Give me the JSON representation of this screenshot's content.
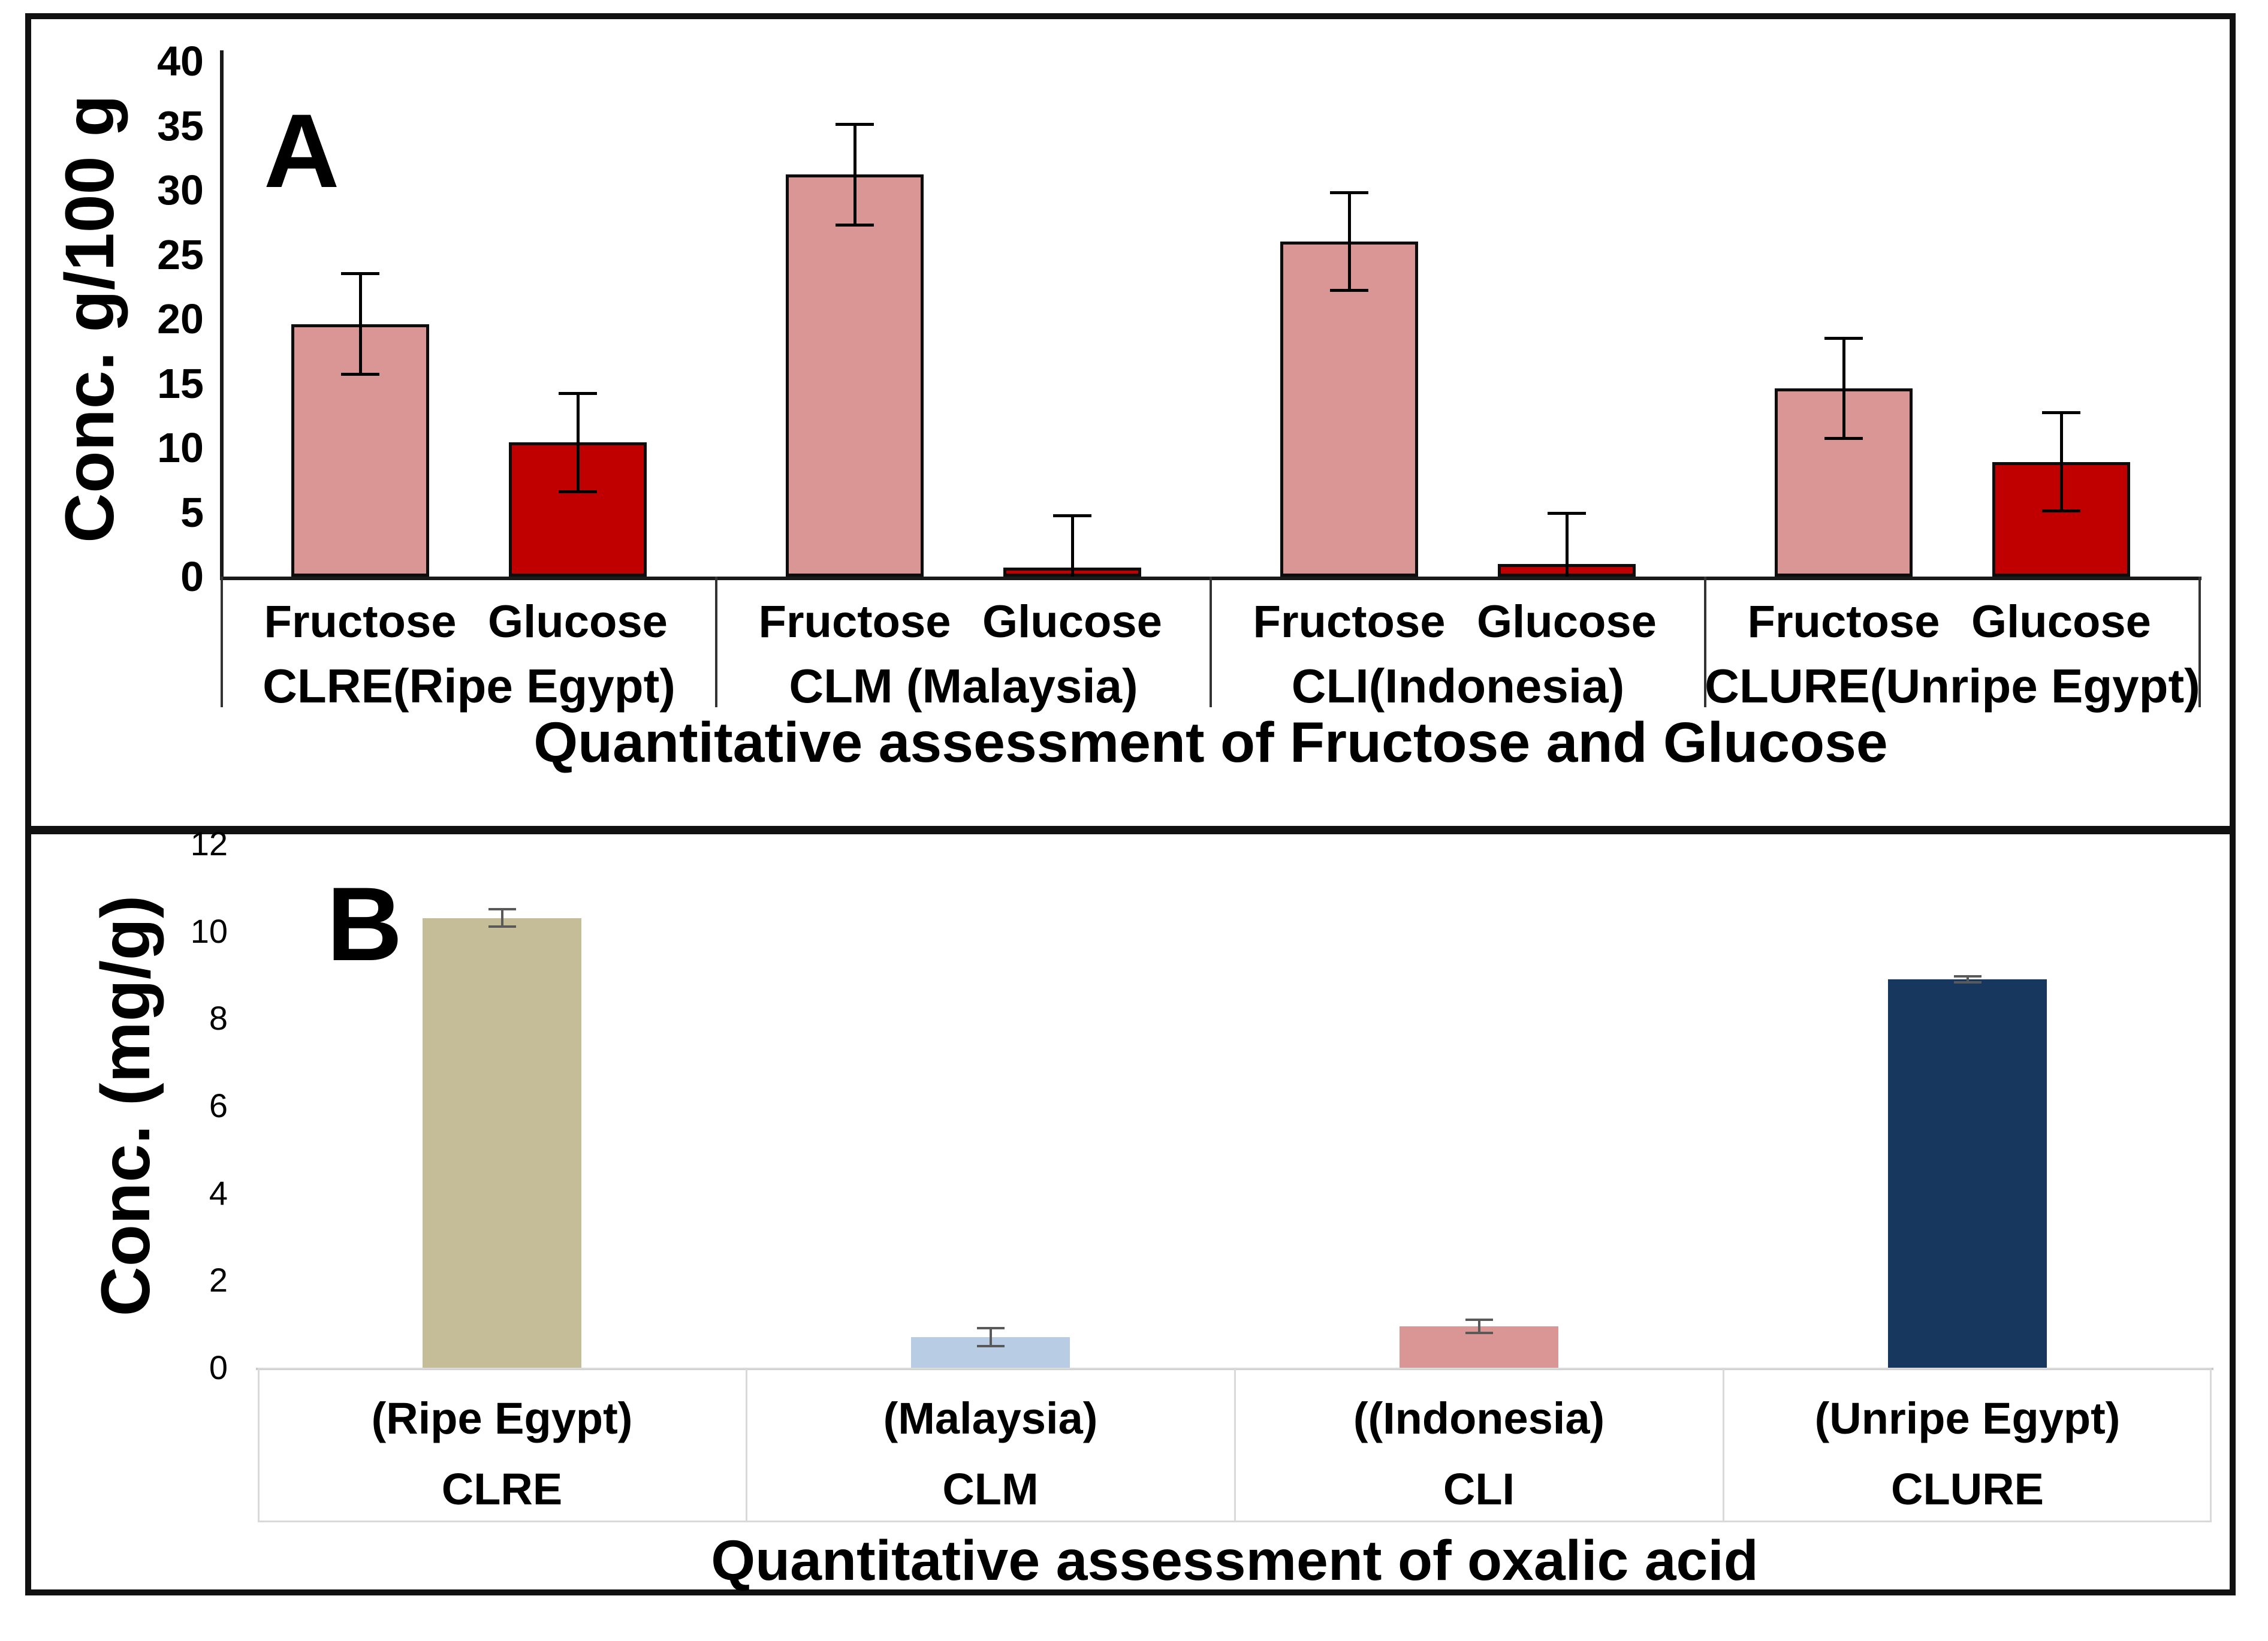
{
  "figure": {
    "description": "Two stacked bar-chart panels comparing sugar and oxalic acid content of samples from different origins"
  },
  "colors": {
    "fructose_pink": "#d99694",
    "glucose_red": "#c00000",
    "clre_tan": "#c4bd97",
    "clm_lightblue": "#b8cce4",
    "cli_rose": "#d99694",
    "clure_navy": "#17375e",
    "error_bar_a": "#000000",
    "error_bar_b": "#595959",
    "axis_black": "#1a1a1a",
    "table_gray": "#d9d9d9"
  },
  "chart_data": [
    {
      "id": "A",
      "type": "bar",
      "panel_letter": "A",
      "title": "Quantitative assessment of Fructose and Glucose",
      "xlabel": "",
      "ylabel": "Conc. g/100 g",
      "ylim": [
        0,
        40
      ],
      "yticks": [
        0,
        5,
        10,
        15,
        20,
        25,
        30,
        35,
        40
      ],
      "grid": false,
      "legend": "none",
      "error_bars": true,
      "groups": [
        {
          "label": "CLRE(Ripe Egypt)",
          "bars": [
            {
              "label": "Fructose",
              "value": 19.6,
              "err": 3.9,
              "color": "#d99694"
            },
            {
              "label": "Glucose",
              "value": 10.4,
              "err": 3.8,
              "color": "#c00000"
            }
          ]
        },
        {
          "label": "CLM (Malaysia)",
          "bars": [
            {
              "label": "Fructose",
              "value": 31.2,
              "err": 3.9,
              "color": "#d99694"
            },
            {
              "label": "Glucose",
              "value": 0.7,
              "err": 4.0,
              "color": "#c00000"
            }
          ]
        },
        {
          "label": "CLI(Indonesia)",
          "bars": [
            {
              "label": "Fructose",
              "value": 26.0,
              "err": 3.8,
              "color": "#d99694"
            },
            {
              "label": "Glucose",
              "value": 1.0,
              "err": 3.9,
              "color": "#c00000"
            }
          ]
        },
        {
          "label": "CLURE(Unripe Egypt)",
          "bars": [
            {
              "label": "Fructose",
              "value": 14.6,
              "err": 3.9,
              "color": "#d99694"
            },
            {
              "label": "Glucose",
              "value": 8.9,
              "err": 3.8,
              "color": "#c00000"
            }
          ]
        }
      ]
    },
    {
      "id": "B",
      "type": "bar",
      "panel_letter": "B",
      "title": "Quantitative assessment of oxalic acid",
      "xlabel": "",
      "ylabel": "Conc. (mg/g)",
      "ylim": [
        0,
        12
      ],
      "yticks": [
        0,
        2,
        4,
        6,
        8,
        10,
        12
      ],
      "grid": false,
      "legend": "none",
      "error_bars": true,
      "groups": [
        {
          "label": "CLRE",
          "sublabel": "(Ripe Egypt)",
          "bars": [
            {
              "value": 10.3,
              "err": 0.2,
              "color": "#c4bd97"
            }
          ]
        },
        {
          "label": "CLM",
          "sublabel": "(Malaysia)",
          "bars": [
            {
              "value": 0.7,
              "err": 0.2,
              "color": "#b8cce4"
            }
          ]
        },
        {
          "label": "CLI",
          "sublabel": "((Indonesia)",
          "bars": [
            {
              "value": 0.95,
              "err": 0.15,
              "color": "#d99694"
            }
          ]
        },
        {
          "label": "CLURE",
          "sublabel": "(Unripe Egypt)",
          "bars": [
            {
              "value": 8.9,
              "err": 0.07,
              "color": "#17375e"
            }
          ]
        }
      ]
    }
  ]
}
